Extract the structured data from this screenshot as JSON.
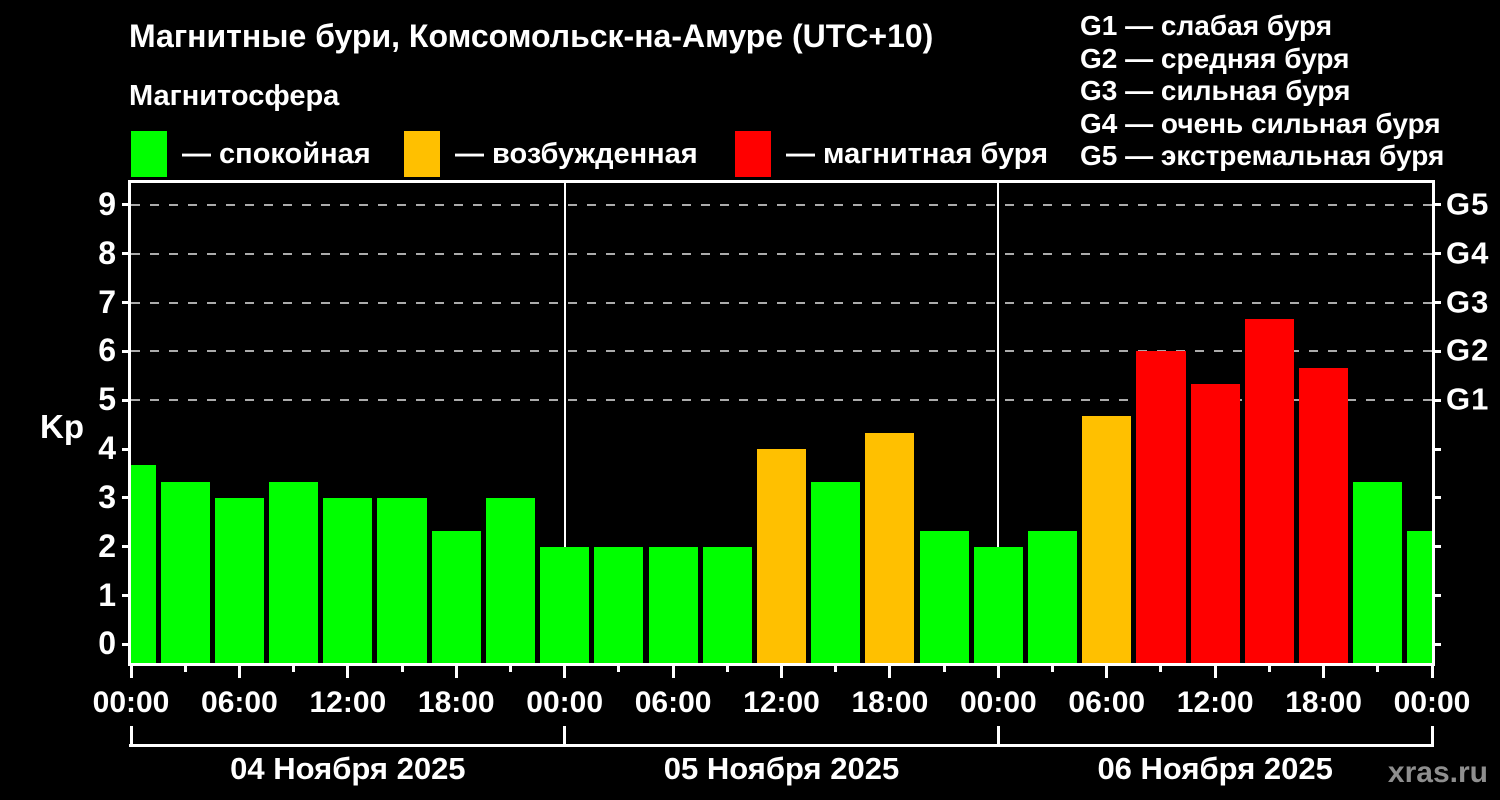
{
  "header": {
    "title": "Магнитные бури, Комсомольск-на-Амуре (UTC+10)",
    "subtitle": "Магнитосфера"
  },
  "legend": {
    "items": [
      {
        "key": "quiet",
        "label": "— спокойная"
      },
      {
        "key": "excited",
        "label": "— возбужденная"
      },
      {
        "key": "storm",
        "label": "— магнитная буря"
      }
    ]
  },
  "storm_scale": {
    "lines": [
      "G1 — слабая буря",
      "G2 — средняя буря",
      "G3 — сильная буря",
      "G4 — очень сильная буря",
      "G5 — экстремальная буря"
    ]
  },
  "watermark": "xras.ru",
  "chart_data": {
    "type": "bar",
    "title": "Магнитные бури, Комсомольск-на-Амуре (UTC+10)",
    "subtitle": "Магнитосфера",
    "ylabel": "Kp",
    "xlim_hours": [
      0,
      72
    ],
    "ylim": [
      -0.38,
      9.45
    ],
    "yticks": [
      0,
      1,
      2,
      3,
      4,
      5,
      6,
      7,
      8,
      9
    ],
    "gridline_values": [
      5,
      6,
      7,
      8,
      9
    ],
    "grid_style": "dashed-horizontal",
    "legend_position": "top",
    "bar_width_hours": 2.72,
    "x_hours": [
      0,
      3,
      6,
      9,
      12,
      15,
      18,
      21,
      24,
      27,
      30,
      33,
      36,
      39,
      42,
      45,
      48,
      51,
      54,
      57,
      60,
      63,
      66,
      69,
      72
    ],
    "values": [
      3.67,
      3.33,
      3.0,
      3.33,
      3.0,
      3.0,
      2.33,
      3.0,
      2.0,
      2.0,
      2.0,
      2.0,
      4.0,
      3.33,
      4.33,
      2.33,
      2.0,
      2.33,
      4.67,
      6.0,
      5.33,
      6.67,
      5.67,
      3.33,
      2.33
    ],
    "statuses": [
      "quiet",
      "quiet",
      "quiet",
      "quiet",
      "quiet",
      "quiet",
      "quiet",
      "quiet",
      "quiet",
      "quiet",
      "quiet",
      "quiet",
      "excited",
      "quiet",
      "excited",
      "quiet",
      "quiet",
      "quiet",
      "excited",
      "storm",
      "storm",
      "storm",
      "storm",
      "quiet",
      "quiet"
    ],
    "colors": {
      "quiet": "#00ff00",
      "excited": "#ffc000",
      "storm": "#ff0000"
    },
    "day_divider_hours": [
      24,
      48
    ],
    "day_bracket_hours": [
      0,
      24,
      48,
      72
    ],
    "x_tick_labels": [
      {
        "hour": 0,
        "label": "00:00"
      },
      {
        "hour": 6,
        "label": "06:00"
      },
      {
        "hour": 12,
        "label": "12:00"
      },
      {
        "hour": 18,
        "label": "18:00"
      },
      {
        "hour": 24,
        "label": "00:00"
      },
      {
        "hour": 30,
        "label": "06:00"
      },
      {
        "hour": 36,
        "label": "12:00"
      },
      {
        "hour": 42,
        "label": "18:00"
      },
      {
        "hour": 48,
        "label": "00:00"
      },
      {
        "hour": 54,
        "label": "06:00"
      },
      {
        "hour": 60,
        "label": "12:00"
      },
      {
        "hour": 66,
        "label": "18:00"
      },
      {
        "hour": 72,
        "label": "00:00"
      }
    ],
    "right_axis_labels": [
      {
        "value": 5,
        "label": "G1"
      },
      {
        "value": 6,
        "label": "G2"
      },
      {
        "value": 7,
        "label": "G3"
      },
      {
        "value": 8,
        "label": "G4"
      },
      {
        "value": 9,
        "label": "G5"
      }
    ],
    "days": [
      {
        "label": "04 Ноября 2025",
        "start_hour": 0
      },
      {
        "label": "05 Ноября 2025",
        "start_hour": 24
      },
      {
        "label": "06 Ноября 2025",
        "start_hour": 48
      }
    ]
  }
}
